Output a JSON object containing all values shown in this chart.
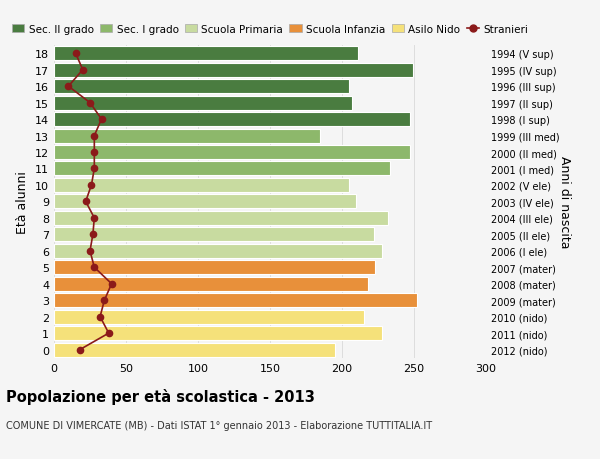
{
  "ages": [
    0,
    1,
    2,
    3,
    4,
    5,
    6,
    7,
    8,
    9,
    10,
    11,
    12,
    13,
    14,
    15,
    16,
    17,
    18
  ],
  "bar_values": [
    195,
    228,
    215,
    252,
    218,
    223,
    228,
    222,
    232,
    210,
    205,
    233,
    247,
    185,
    247,
    207,
    205,
    249,
    211
  ],
  "bar_colors": [
    "#f5e17a",
    "#f5e17a",
    "#f5e17a",
    "#e8903a",
    "#e8903a",
    "#e8903a",
    "#c8dba0",
    "#c8dba0",
    "#c8dba0",
    "#c8dba0",
    "#c8dba0",
    "#8db86b",
    "#8db86b",
    "#8db86b",
    "#4a7c40",
    "#4a7c40",
    "#4a7c40",
    "#4a7c40",
    "#4a7c40"
  ],
  "stranieri_values": [
    18,
    38,
    32,
    35,
    40,
    28,
    25,
    27,
    28,
    22,
    26,
    28,
    28,
    28,
    33,
    25,
    10,
    20,
    15
  ],
  "right_labels": [
    "2012 (nido)",
    "2011 (nido)",
    "2010 (nido)",
    "2009 (mater)",
    "2008 (mater)",
    "2007 (mater)",
    "2006 (I ele)",
    "2005 (II ele)",
    "2004 (III ele)",
    "2003 (IV ele)",
    "2002 (V ele)",
    "2001 (I med)",
    "2000 (II med)",
    "1999 (III med)",
    "1998 (I sup)",
    "1997 (II sup)",
    "1996 (III sup)",
    "1995 (IV sup)",
    "1994 (V sup)"
  ],
  "legend_labels": [
    "Sec. II grado",
    "Sec. I grado",
    "Scuola Primaria",
    "Scuola Infanzia",
    "Asilo Nido",
    "Stranieri"
  ],
  "legend_colors": [
    "#4a7c40",
    "#8db86b",
    "#c8dba0",
    "#e8903a",
    "#f5e17a",
    "#8b1a1a"
  ],
  "ylabel": "Età alunni",
  "ylabel2": "Anni di nascita",
  "title": "Popolazione per età scolastica - 2013",
  "subtitle": "COMUNE DI VIMERCATE (MB) - Dati ISTAT 1° gennaio 2013 - Elaborazione TUTTITALIA.IT",
  "xlim": [
    0,
    300
  ],
  "xticks": [
    0,
    50,
    100,
    150,
    200,
    250,
    300
  ],
  "bg_color": "#f5f5f5",
  "bar_edge_color": "white",
  "grid_color": "#dddddd"
}
